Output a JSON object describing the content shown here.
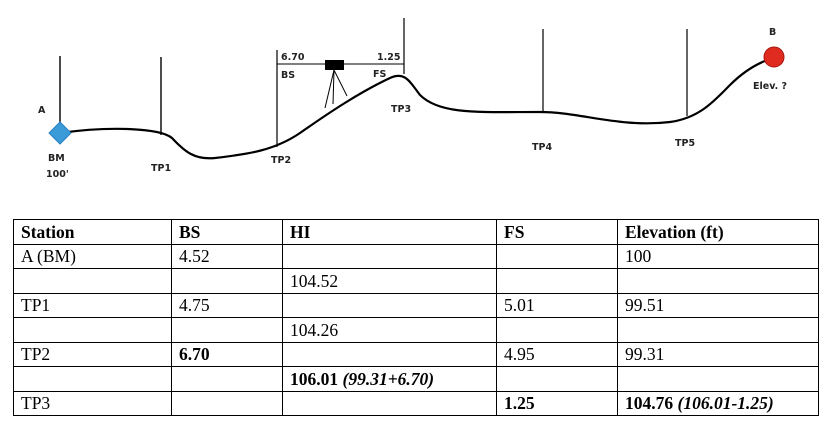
{
  "diagram": {
    "point_a": "A",
    "bm": "BM",
    "bm_elev": "100'",
    "tp1": "TP1",
    "tp2": "TP2",
    "tp3": "TP3",
    "tp4": "TP4",
    "tp5": "TP5",
    "point_b": "B",
    "elev_unknown": "Elev. ?",
    "bs_reading": "6.70",
    "fs_reading": "1.25",
    "bs_label": "BS",
    "fs_label": "FS",
    "colors": {
      "benchmark": "#3b9bd8",
      "target": "#e02b20",
      "line": "#000000"
    }
  },
  "table": {
    "headers": [
      "Station",
      "BS",
      "HI",
      "FS",
      "Elevation (ft)"
    ],
    "rows": [
      {
        "station": "A (BM)",
        "bs": "4.52",
        "hi": "",
        "hi_note": "",
        "fs": "",
        "elev": "100",
        "elev_note": ""
      },
      {
        "station": "",
        "bs": "",
        "hi": "104.52",
        "hi_note": "",
        "fs": "",
        "elev": "",
        "elev_note": ""
      },
      {
        "station": "TP1",
        "bs": "4.75",
        "hi": "",
        "hi_note": "",
        "fs": "5.01",
        "elev": "99.51",
        "elev_note": ""
      },
      {
        "station": "",
        "bs": "",
        "hi": "104.26",
        "hi_note": "",
        "fs": "",
        "elev": "",
        "elev_note": ""
      },
      {
        "station": "TP2",
        "bs": "6.70",
        "hi": "",
        "hi_note": "",
        "fs": "4.95",
        "elev": "99.31",
        "elev_note": ""
      },
      {
        "station": "",
        "bs": "",
        "hi": "106.01",
        "hi_note": "(99.31+6.70)",
        "fs": "",
        "elev": "",
        "elev_note": ""
      },
      {
        "station": "TP3",
        "bs": "",
        "hi": "",
        "hi_note": "",
        "fs": "1.25",
        "elev": "104.76",
        "elev_note": "(106.01-1.25)"
      }
    ]
  }
}
